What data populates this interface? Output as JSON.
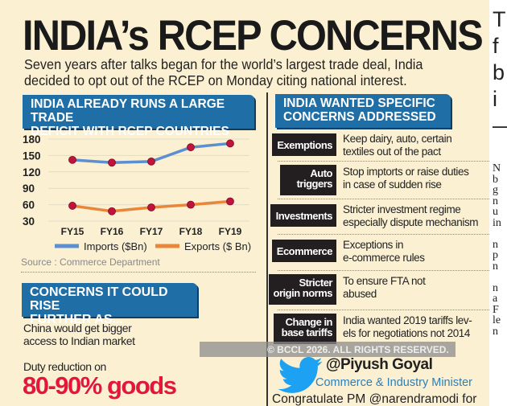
{
  "title": "INDIA’s RCEP CONCERNS",
  "subtitle": [
    "Seven years after talks began for the world’s largest trade deal, India",
    "decided to opt out of the RCEP on Monday citing national interest."
  ],
  "chart_section": {
    "header": [
      "INDIA ALREADY RUNS A LARGE TRADE",
      "DEFICIT WITH RCEP COUNTRIES"
    ],
    "source": "Source : Commerce Department"
  },
  "chart_data": {
    "type": "line",
    "categories": [
      "FY15",
      "FY16",
      "FY17",
      "FY18",
      "FY19"
    ],
    "yticks": [
      "180",
      "150",
      "120",
      "90",
      "60",
      "30"
    ],
    "ylim": [
      30,
      180
    ],
    "grid": true,
    "legend": "bottom",
    "series": [
      {
        "name": "Imports ($Bn)",
        "values": [
          142,
          137,
          139,
          165,
          172
        ],
        "color": "#5b8fd0"
      },
      {
        "name": "Exports ($ Bn)",
        "values": [
          58,
          48,
          55,
          60,
          66
        ],
        "color": "#e8873a"
      }
    ],
    "marker_color": "#c0143c"
  },
  "concerns": {
    "header": [
      "CONCERNS IT COULD RISE",
      "FURTHER AS..."
    ],
    "point1": [
      "China would get  bigger",
      "access to Indian market"
    ],
    "point2": "Duty reduction on",
    "highlight": "80-90% goods",
    "highlight_color": "#e3173e"
  },
  "specific": {
    "header": [
      "INDIA WANTED SPECIFIC",
      "CONCERNS ADDRESSED"
    ],
    "rows": [
      {
        "label": [
          "Exemptions"
        ],
        "text": [
          "Keep dairy, auto, certain",
          "textiles out of the pact"
        ]
      },
      {
        "label": [
          "Auto",
          "triggers"
        ],
        "text": [
          "Stop imptorts or raise duties",
          "in case of sudden rise"
        ]
      },
      {
        "label": [
          "Investments"
        ],
        "text": [
          "Stricter investment regime",
          "especially dispute mechanism"
        ]
      },
      {
        "label": [
          "Ecommerce"
        ],
        "text": [
          "Exceptions in",
          "e-commerce rules"
        ]
      },
      {
        "label": [
          "Stricter",
          "origin norms"
        ],
        "text": [
          "To ensure FTA not",
          "abused"
        ]
      },
      {
        "label": [
          "Change in",
          "base tariffs"
        ],
        "text": [
          "India wanted 2019 tariffs lev-",
          "els for negotiations not 2014"
        ]
      }
    ]
  },
  "tweet": {
    "handle": "@Piyush Goyal",
    "role": "Commerce & Industry Minister",
    "text": "Congratulate PM @narendramodi for",
    "icon": "twitter-bird-icon",
    "color": "#1da1f2"
  },
  "watermark": "© BCCL 2026. ALL RIGHTS RESERVED.",
  "article_fragment": {
    "heading": [
      "T",
      "f",
      "b",
      "i",
      "—"
    ],
    "body": [
      "N",
      "b",
      "g",
      "n",
      "u",
      "in",
      "",
      "n",
      "p",
      "n",
      "",
      "n",
      "a",
      "F",
      "le",
      "n"
    ]
  }
}
